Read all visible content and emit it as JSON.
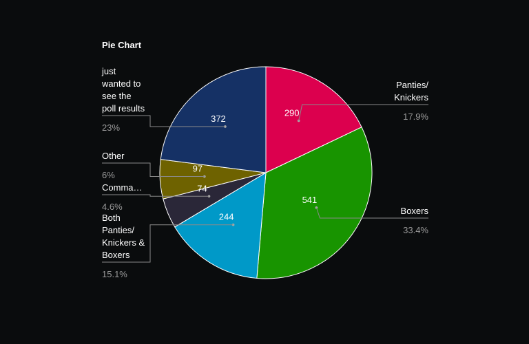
{
  "chart_data": {
    "type": "pie",
    "title": "Pie Chart",
    "slices": [
      {
        "label": "Panties/\nKnickers",
        "value": 290,
        "percent": "17.9%",
        "color": "#dc004e"
      },
      {
        "label": "Boxers",
        "value": 541,
        "percent": "33.4%",
        "color": "#189400"
      },
      {
        "label": "Both\nPanties/\nKnickers &\nBoxers",
        "value": 244,
        "percent": "15.1%",
        "color": "#0099c8"
      },
      {
        "label": "Comma…",
        "value": 74,
        "percent": "4.6%",
        "color": "#2a2738"
      },
      {
        "label": "Other",
        "value": 97,
        "percent": "6%",
        "color": "#6e6200"
      },
      {
        "label": "just\nwanted to\nsee the\npoll results",
        "value": 372,
        "percent": "23%",
        "color": "#153165"
      }
    ],
    "legend": "none",
    "start_angle": "top",
    "direction": "clockwise"
  }
}
